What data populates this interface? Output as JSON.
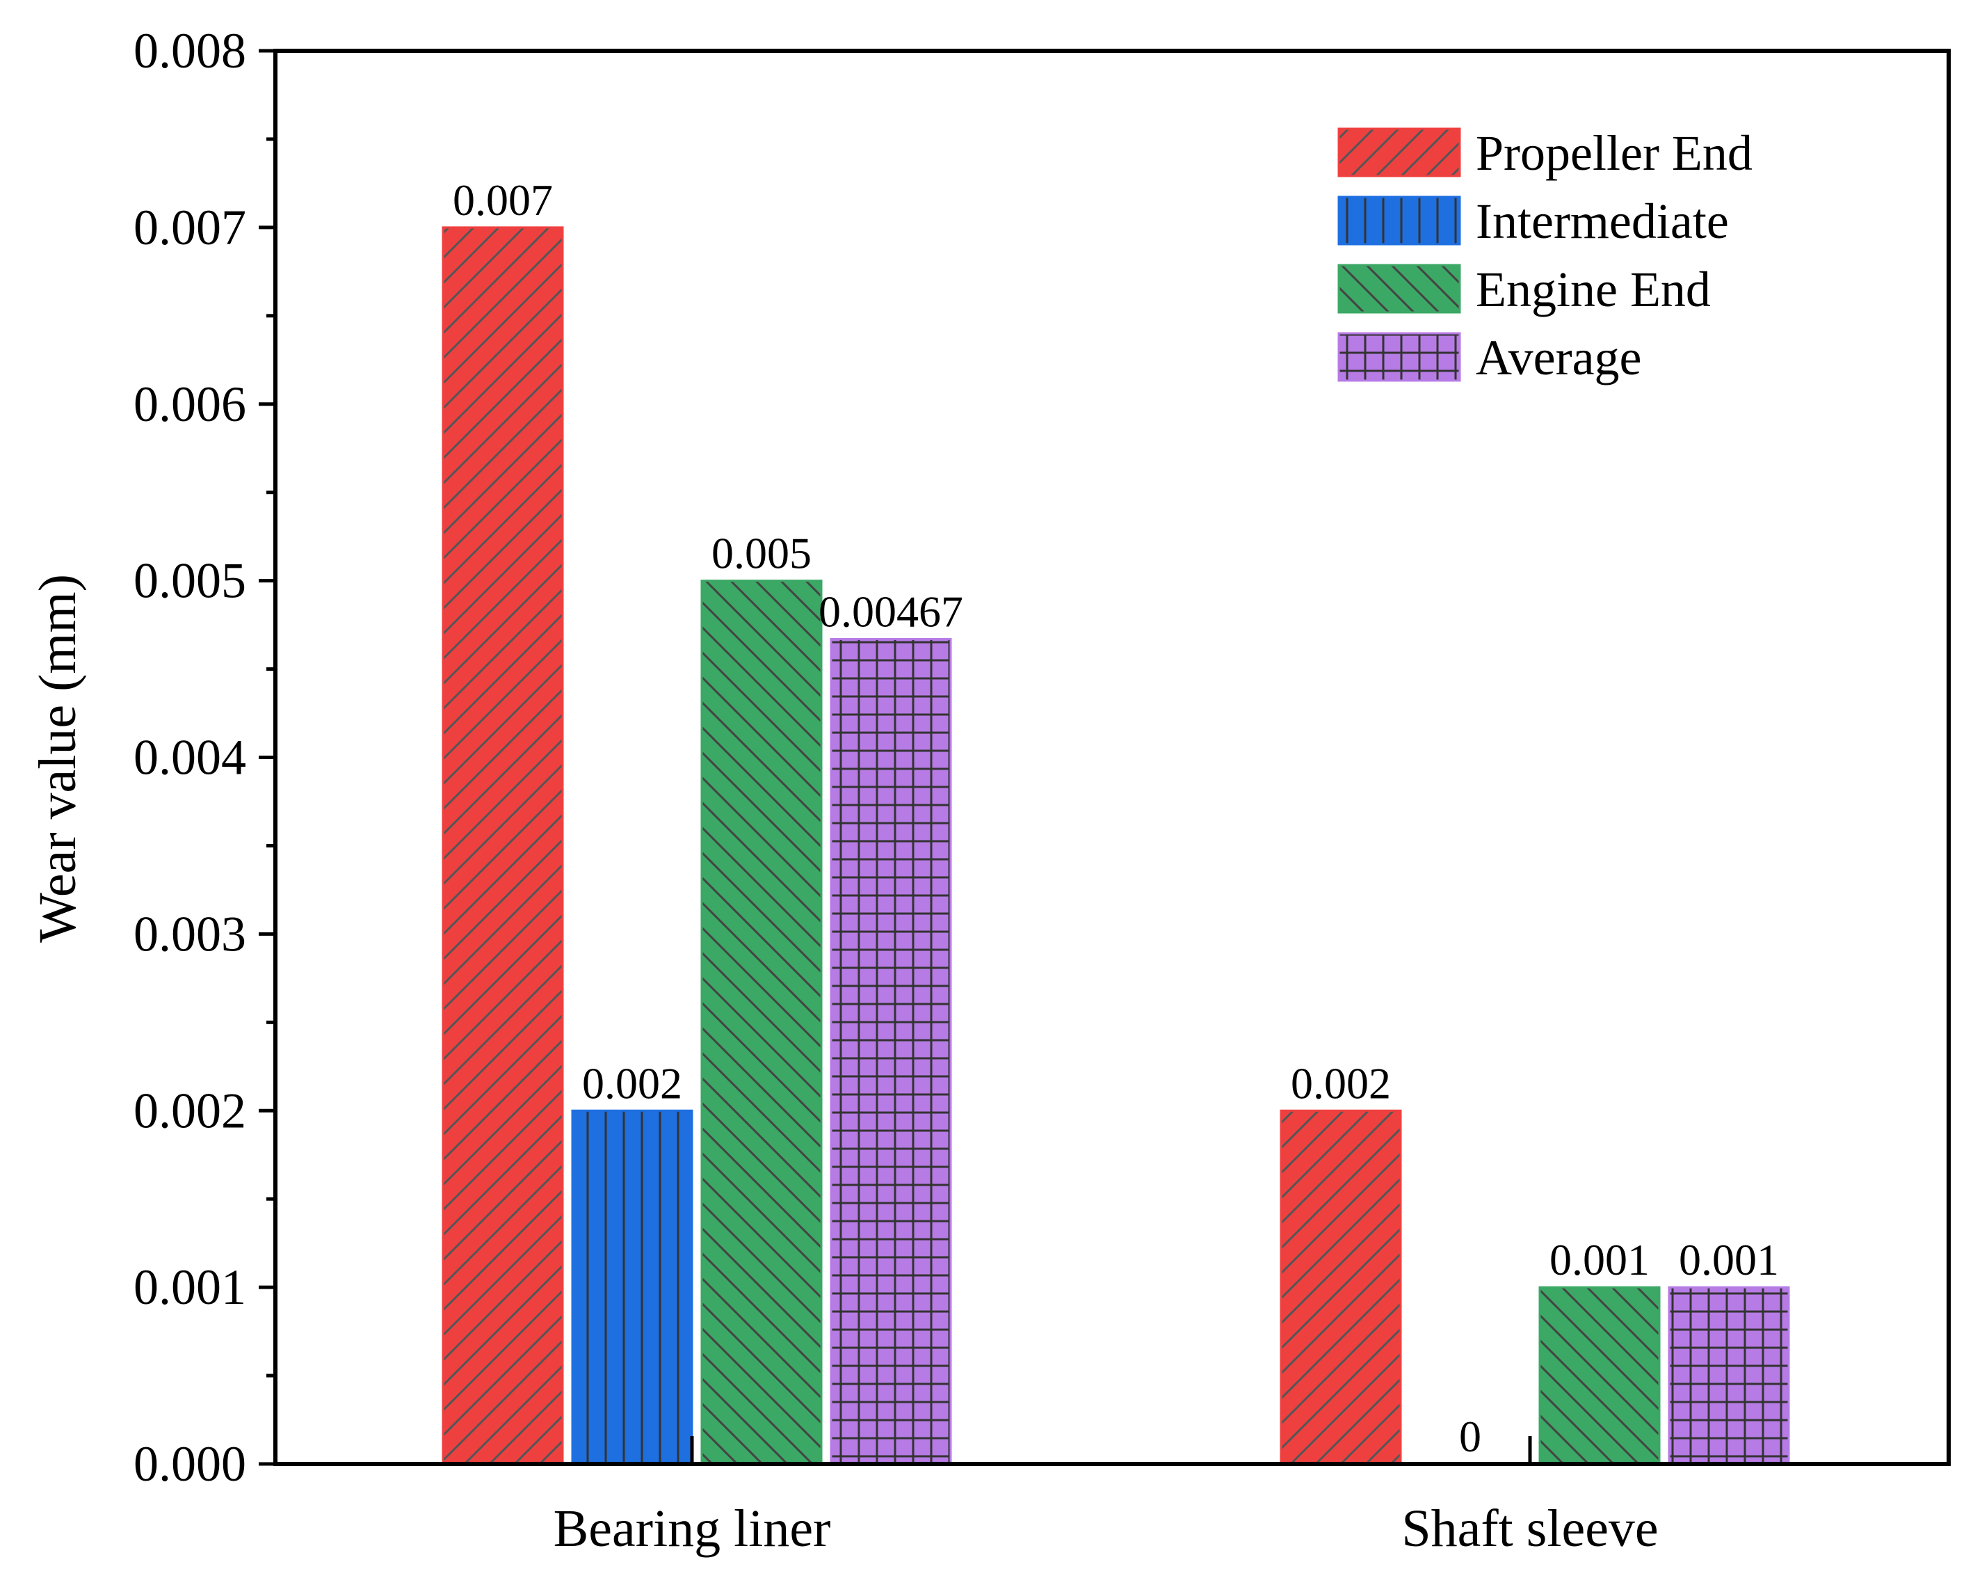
{
  "chart_data": {
    "type": "bar",
    "title": "",
    "xlabel": "",
    "ylabel": "Wear value (mm)",
    "ylim": [
      0,
      0.008
    ],
    "yticks": [
      "0.000",
      "0.001",
      "0.002",
      "0.003",
      "0.004",
      "0.005",
      "0.006",
      "0.007",
      "0.008"
    ],
    "categories": [
      "Bearing liner",
      "Shaft sleeve"
    ],
    "legend_position": "top-right",
    "series": [
      {
        "name": "Propeller End",
        "values": [
          0.007,
          0.002
        ],
        "labels": [
          "0.007",
          "0.002"
        ],
        "color": "#EF4040",
        "pattern": "diag-up"
      },
      {
        "name": "Intermediate",
        "values": [
          0.002,
          0
        ],
        "labels": [
          "0.002",
          "0"
        ],
        "color": "#1E6FE0",
        "pattern": "vertical"
      },
      {
        "name": "Engine End",
        "values": [
          0.005,
          0.001
        ],
        "labels": [
          "0.005",
          "0.001"
        ],
        "color": "#3BA865",
        "pattern": "diag-down"
      },
      {
        "name": "Average",
        "values": [
          0.00467,
          0.001
        ],
        "labels": [
          "0.00467",
          "0.001"
        ],
        "color": "#B77BE6",
        "pattern": "grid"
      }
    ]
  }
}
